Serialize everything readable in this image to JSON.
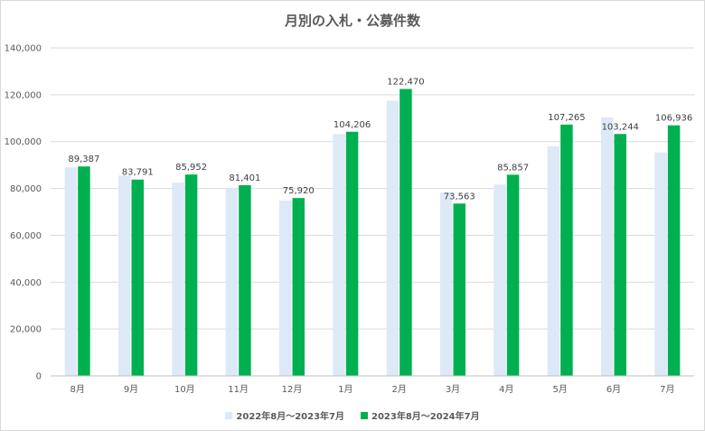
{
  "chart_data": {
    "type": "bar",
    "title": "月別の入札・公募件数",
    "categories": [
      "8月",
      "9月",
      "10月",
      "11月",
      "12月",
      "1月",
      "2月",
      "3月",
      "4月",
      "5月",
      "6月",
      "7月"
    ],
    "series": [
      {
        "name": "2022年8月～2023年7月",
        "color": "#dde9f6",
        "values": [
          89000,
          85500,
          82500,
          80000,
          74800,
          103200,
          117500,
          78300,
          81700,
          98000,
          110300,
          95400
        ]
      },
      {
        "name": "2023年8月～2024年7月",
        "color": "#00b050",
        "values": [
          89387,
          83791,
          85952,
          81401,
          75920,
          104206,
          122470,
          73563,
          85857,
          107265,
          103244,
          106936
        ],
        "data_labels": [
          "89,387",
          "83,791",
          "85,952",
          "81,401",
          "75,920",
          "104,206",
          "122,470",
          "73,563",
          "85,857",
          "107,265",
          "103,244",
          "106,936"
        ]
      }
    ],
    "ylim": [
      0,
      140000
    ],
    "yticks": [
      0,
      20000,
      40000,
      60000,
      80000,
      100000,
      120000,
      140000
    ],
    "ytick_labels": [
      "0",
      "20,000",
      "40,000",
      "60,000",
      "80,000",
      "100,000",
      "120,000",
      "140,000"
    ],
    "grid": true,
    "legend_position": "bottom"
  }
}
